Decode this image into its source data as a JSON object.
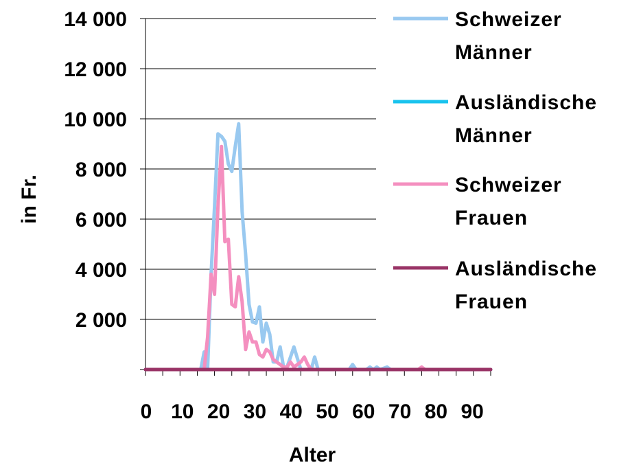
{
  "chart_data": {
    "type": "line",
    "xlabel": "Alter",
    "ylabel": "in Fr.",
    "xlim": [
      0,
      100
    ],
    "ylim": [
      0,
      14000
    ],
    "y_ticks": [
      {
        "value": 0,
        "label": ""
      },
      {
        "value": 2000,
        "label": "2 000"
      },
      {
        "value": 4000,
        "label": "4 000"
      },
      {
        "value": 6000,
        "label": "6 000"
      },
      {
        "value": 8000,
        "label": "8 000"
      },
      {
        "value": 10000,
        "label": "10 000"
      },
      {
        "value": 12000,
        "label": "12 000"
      },
      {
        "value": 14000,
        "label": "14 000"
      }
    ],
    "x_ticks": [
      {
        "value": 0,
        "label": "0"
      },
      {
        "value": 10,
        "label": "10"
      },
      {
        "value": 20,
        "label": "20"
      },
      {
        "value": 30,
        "label": "30"
      },
      {
        "value": 40,
        "label": "40"
      },
      {
        "value": 50,
        "label": "50"
      },
      {
        "value": 60,
        "label": "60"
      },
      {
        "value": 70,
        "label": "70"
      },
      {
        "value": 80,
        "label": "80"
      },
      {
        "value": 90,
        "label": "90"
      }
    ],
    "grid": "horizontal",
    "legend_position": "right",
    "series": [
      {
        "name_lines": [
          "Schweizer",
          "Männer"
        ],
        "color": "#99c9f0",
        "points": [
          [
            0,
            0
          ],
          [
            16,
            0
          ],
          [
            17,
            700
          ],
          [
            18,
            0
          ],
          [
            19,
            3800
          ],
          [
            20,
            6500
          ],
          [
            21,
            9400
          ],
          [
            22,
            9300
          ],
          [
            23,
            9100
          ],
          [
            24,
            8200
          ],
          [
            25,
            7900
          ],
          [
            26,
            8900
          ],
          [
            27,
            9800
          ],
          [
            28,
            6300
          ],
          [
            29,
            4600
          ],
          [
            30,
            2600
          ],
          [
            31,
            1900
          ],
          [
            32,
            1850
          ],
          [
            33,
            2500
          ],
          [
            34,
            1100
          ],
          [
            35,
            1850
          ],
          [
            36,
            1400
          ],
          [
            37,
            300
          ],
          [
            38,
            300
          ],
          [
            39,
            900
          ],
          [
            40,
            100
          ],
          [
            41,
            100
          ],
          [
            42,
            500
          ],
          [
            43,
            900
          ],
          [
            44,
            450
          ],
          [
            45,
            0
          ],
          [
            48,
            0
          ],
          [
            49,
            500
          ],
          [
            50,
            0
          ],
          [
            59,
            0
          ],
          [
            60,
            200
          ],
          [
            61,
            0
          ],
          [
            64,
            0
          ],
          [
            65,
            100
          ],
          [
            66,
            0
          ],
          [
            67,
            100
          ],
          [
            68,
            0
          ],
          [
            70,
            100
          ],
          [
            71,
            0
          ],
          [
            100,
            0
          ]
        ]
      },
      {
        "name_lines": [
          "Ausländische",
          "Männer"
        ],
        "color": "#19c3ee",
        "points": [
          [
            0,
            0
          ],
          [
            100,
            0
          ]
        ]
      },
      {
        "name_lines": [
          "Schweizer",
          "Frauen"
        ],
        "color": "#f48fbf",
        "points": [
          [
            0,
            0
          ],
          [
            17,
            0
          ],
          [
            18,
            1300
          ],
          [
            19,
            3800
          ],
          [
            20,
            3000
          ],
          [
            21,
            6500
          ],
          [
            22,
            8900
          ],
          [
            23,
            5100
          ],
          [
            24,
            5200
          ],
          [
            25,
            2600
          ],
          [
            26,
            2500
          ],
          [
            27,
            3700
          ],
          [
            28,
            2700
          ],
          [
            29,
            800
          ],
          [
            30,
            1500
          ],
          [
            31,
            1100
          ],
          [
            32,
            1100
          ],
          [
            33,
            600
          ],
          [
            34,
            500
          ],
          [
            35,
            800
          ],
          [
            36,
            700
          ],
          [
            37,
            400
          ],
          [
            38,
            300
          ],
          [
            39,
            200
          ],
          [
            40,
            100
          ],
          [
            41,
            100
          ],
          [
            42,
            300
          ],
          [
            43,
            100
          ],
          [
            44,
            200
          ],
          [
            45,
            300
          ],
          [
            46,
            500
          ],
          [
            47,
            200
          ],
          [
            48,
            0
          ],
          [
            79,
            0
          ],
          [
            80,
            100
          ],
          [
            81,
            0
          ],
          [
            100,
            0
          ]
        ]
      },
      {
        "name_lines": [
          "Ausländische",
          "Frauen"
        ],
        "color": "#993366",
        "points": [
          [
            0,
            0
          ],
          [
            100,
            0
          ]
        ]
      }
    ]
  }
}
